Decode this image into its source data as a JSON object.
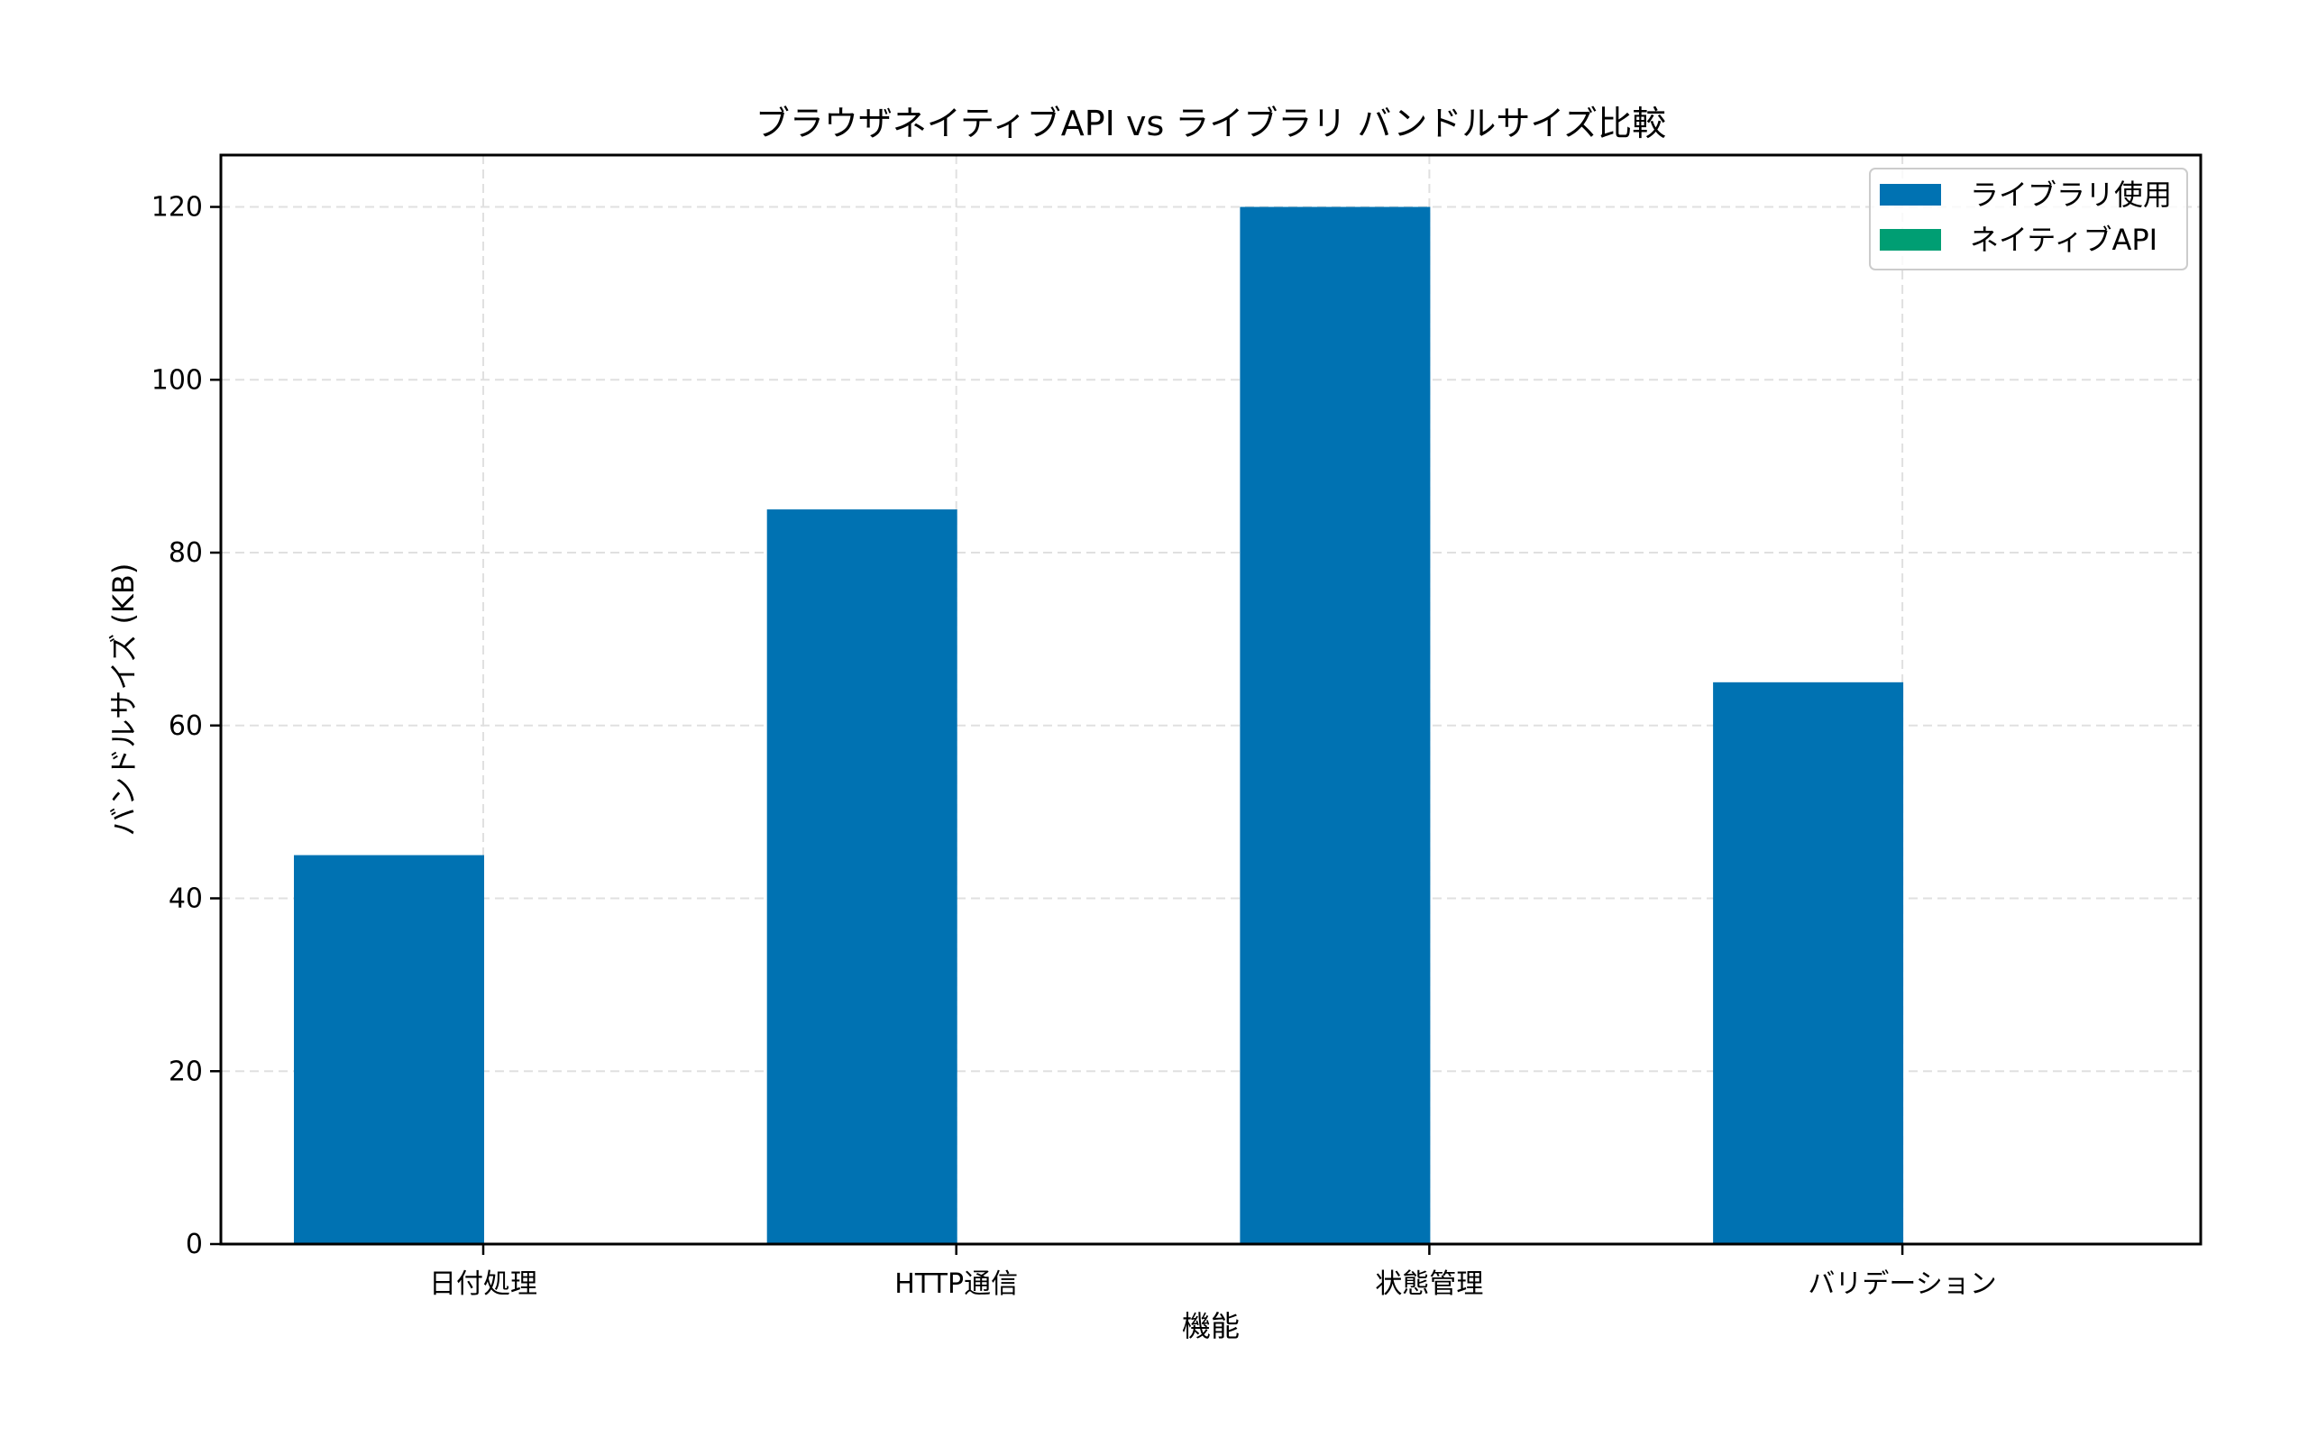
{
  "chart_data": {
    "type": "bar",
    "title": "ブラウザネイティブAPI vs ライブラリ バンドルサイズ比較",
    "xlabel": "機能",
    "ylabel": "バンドルサイズ (KB)",
    "categories": [
      "日付処理",
      "HTTP通信",
      "状態管理",
      "バリデーション"
    ],
    "series": [
      {
        "name": "ライブラリ使用",
        "color": "#0072b2",
        "values": [
          45,
          85,
          120,
          65
        ]
      },
      {
        "name": "ネイティブAPI",
        "color": "#009e73",
        "values": [
          0,
          0,
          0,
          0
        ]
      }
    ],
    "ylim": [
      0,
      126
    ],
    "yticks": [
      0,
      20,
      40,
      60,
      80,
      100,
      120
    ],
    "grid": true,
    "grid_style": "dashed",
    "legend_position": "upper right"
  }
}
